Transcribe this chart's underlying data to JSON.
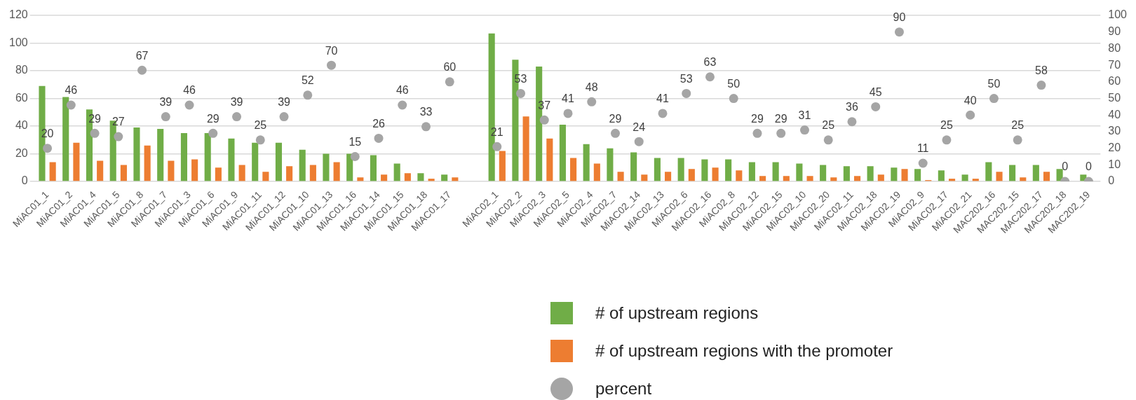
{
  "chart_data": {
    "type": "bar",
    "categories": [
      "MiAC01_1",
      "MiAC01_2",
      "MiAC01_4",
      "MiAC01_5",
      "MiAC01_8",
      "MiAC01_7",
      "MiAC01_3",
      "MiAC01_6",
      "MiAC01_9",
      "MiAC01_11",
      "MiAC01_12",
      "MiAC01_10",
      "MiAC01_13",
      "MiAC01_16",
      "MiAC01_14",
      "MiAC01_15",
      "MiAC01_18",
      "MiAC01_17",
      null,
      "MiAC02_1",
      "MiAC02_2",
      "MiAC02_3",
      "MiAC02_5",
      "MiAC02_4",
      "MiAC02_7",
      "MiAC02_14",
      "MiAC02_13",
      "MiAC02_6",
      "MiAC02_16",
      "MiAC02_8",
      "MiAC02_12",
      "MiAC02_15",
      "MiAC02_10",
      "MiAC02_20",
      "MiAC02_11",
      "MiAC02_18",
      "MiAC02_19",
      "MiAC02_9",
      "MiAC02_17",
      "MiAC02_21",
      "MAC202_16",
      "MAC202_15",
      "MAC202_17",
      "MAC202_18",
      "MAC202_19"
    ],
    "series": [
      {
        "name": "# of upstream regions",
        "color": "#70ad47",
        "values": [
          69,
          61,
          52,
          44,
          39,
          38,
          35,
          35,
          31,
          28,
          28,
          23,
          20,
          20,
          19,
          13,
          6,
          5,
          null,
          107,
          88,
          83,
          41,
          27,
          24,
          21,
          17,
          17,
          16,
          16,
          14,
          14,
          13,
          12,
          11,
          11,
          10,
          9,
          8,
          5,
          14,
          12,
          12,
          9,
          5
        ]
      },
      {
        "name": "# of upstream regions with the promoter",
        "color": "#ed7d31",
        "values": [
          14,
          28,
          15,
          12,
          26,
          15,
          16,
          10,
          12,
          7,
          11,
          12,
          14,
          3,
          5,
          6,
          2,
          3,
          null,
          22,
          47,
          31,
          17,
          13,
          7,
          5,
          7,
          9,
          10,
          8,
          4,
          4,
          4,
          3,
          4,
          5,
          9,
          1,
          2,
          2,
          7,
          3,
          7,
          0,
          0
        ]
      },
      {
        "name": "percent",
        "type": "scatter",
        "axis": "y2",
        "color": "#a5a5a5",
        "marker": "circle",
        "values": [
          20,
          46,
          29,
          27,
          67,
          39,
          46,
          29,
          39,
          25,
          39,
          52,
          70,
          15,
          26,
          46,
          33,
          60,
          null,
          21,
          53,
          37,
          41,
          48,
          29,
          24,
          41,
          53,
          63,
          50,
          29,
          29,
          31,
          25,
          36,
          45,
          90,
          11,
          25,
          40,
          50,
          25,
          58,
          0,
          0
        ],
        "value_labels": [
          "20",
          "46",
          "29",
          "27",
          "67",
          "39",
          "46",
          "29",
          "39",
          "25",
          "39",
          "52",
          "70",
          "15",
          "26",
          "46",
          "33",
          "60",
          null,
          "21",
          "53",
          "37",
          "41",
          "48",
          "29",
          "24",
          "41",
          "53",
          "63",
          "50",
          "29",
          "29",
          "31",
          "25",
          "36",
          "45",
          "90",
          "11",
          "25",
          "40",
          "50",
          "25",
          "58",
          "0",
          "0"
        ]
      }
    ],
    "ylim": [
      0,
      120
    ],
    "yticks": [
      0,
      20,
      40,
      60,
      80,
      100,
      120
    ],
    "y2lim": [
      0,
      100
    ],
    "y2ticks": [
      0,
      10,
      20,
      30,
      40,
      50,
      60,
      70,
      80,
      90,
      100
    ],
    "grid": "y",
    "legend": "bottom"
  }
}
